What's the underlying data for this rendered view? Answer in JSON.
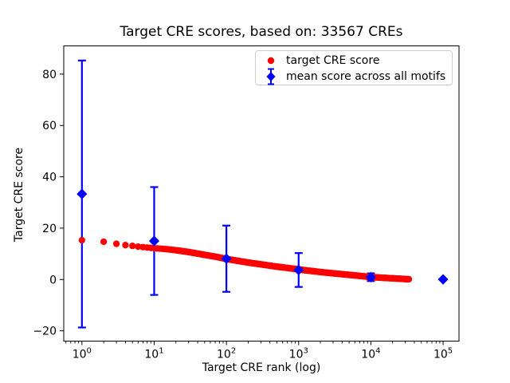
{
  "chart_data": {
    "type": "scatter",
    "title": "Target CRE scores, based on: 33567 CREs",
    "xlabel": "Target CRE rank (log)",
    "ylabel": "Target CRE score",
    "x_scale": "log",
    "xlim": [
      0.56,
      166000
    ],
    "ylim": [
      -24,
      91
    ],
    "x_tick_exponents": [
      0,
      1,
      2,
      3,
      4,
      5
    ],
    "x_tick_base": "10",
    "y_ticks": [
      -20,
      0,
      20,
      40,
      60,
      80
    ],
    "grid": false,
    "legend_position": "upper right",
    "series": [
      {
        "name": "target CRE score",
        "color": "#ff0000",
        "marker": "circle",
        "max_rank": 33567,
        "anchors": [
          [
            1,
            15.3
          ],
          [
            2,
            14.7
          ],
          [
            3,
            13.9
          ],
          [
            4,
            13.4
          ],
          [
            5,
            13.1
          ],
          [
            6,
            12.8
          ],
          [
            7,
            12.6
          ],
          [
            8,
            12.45
          ],
          [
            9,
            12.3
          ],
          [
            10,
            12.2
          ],
          [
            15,
            11.8
          ],
          [
            20,
            11.4
          ],
          [
            30,
            10.7
          ],
          [
            50,
            9.6
          ],
          [
            70,
            8.9
          ],
          [
            100,
            8.0
          ],
          [
            200,
            6.6
          ],
          [
            300,
            5.9
          ],
          [
            500,
            5.0
          ],
          [
            700,
            4.5
          ],
          [
            1000,
            3.9
          ],
          [
            2000,
            2.9
          ],
          [
            3000,
            2.4
          ],
          [
            5000,
            1.8
          ],
          [
            7000,
            1.4
          ],
          [
            10000,
            0.95
          ],
          [
            15000,
            0.65
          ],
          [
            20000,
            0.45
          ],
          [
            33567,
            0.1
          ]
        ]
      },
      {
        "name": "mean score across all motifs",
        "color": "#0000ff",
        "marker": "diamond",
        "points": [
          {
            "x": 1,
            "mean": 33.3,
            "std": 52.0
          },
          {
            "x": 10,
            "mean": 15.0,
            "std": 21.0
          },
          {
            "x": 100,
            "mean": 8.1,
            "std": 12.9
          },
          {
            "x": 1000,
            "mean": 3.7,
            "std": 6.6
          },
          {
            "x": 10000,
            "mean": 0.9,
            "std": 1.5
          },
          {
            "x": 100000,
            "mean": 0.05,
            "std": 0.0
          }
        ]
      }
    ]
  }
}
